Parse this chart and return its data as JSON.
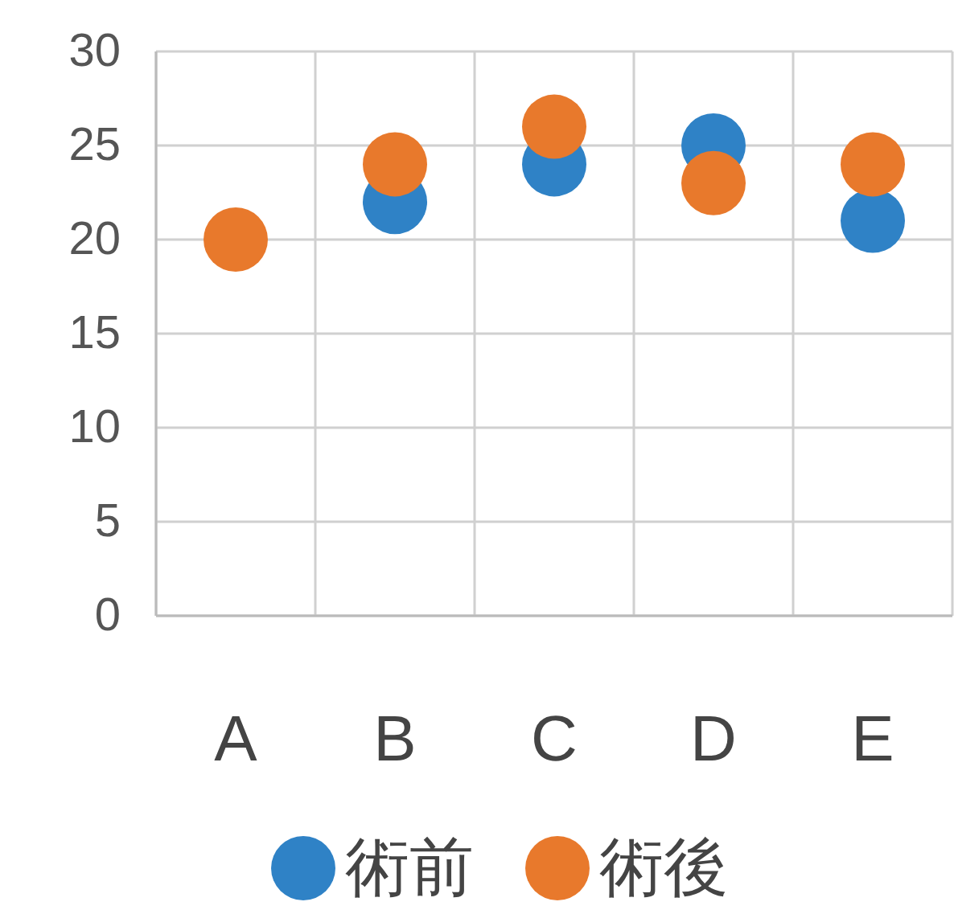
{
  "chart_data": {
    "type": "scatter",
    "categories": [
      "A",
      "B",
      "C",
      "D",
      "E"
    ],
    "series": [
      {
        "name": "術前",
        "color": "#2f82c6",
        "values": [
          null,
          22,
          24,
          25,
          21
        ]
      },
      {
        "name": "術後",
        "color": "#e8792c",
        "values": [
          20,
          24,
          26,
          23,
          24
        ]
      }
    ],
    "ylim": [
      0,
      30
    ],
    "yticks": [
      0,
      5,
      10,
      15,
      20,
      25,
      30
    ],
    "grid": true,
    "legend": "bottom",
    "marker": "circle"
  }
}
